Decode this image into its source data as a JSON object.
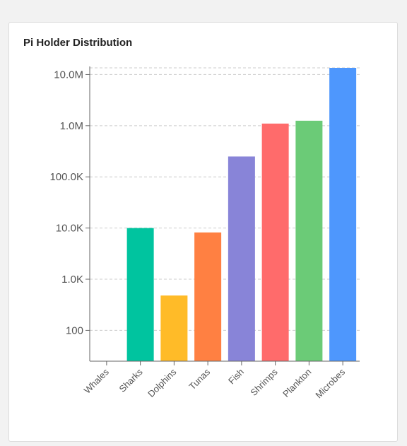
{
  "card": {
    "title": "Pi Holder Distribution"
  },
  "chart_data": {
    "type": "bar",
    "title": "Pi Holder Distribution",
    "xlabel": "",
    "ylabel": "",
    "yscale": "log",
    "ylim": [
      25,
      13500000
    ],
    "grid": true,
    "legend": "none",
    "yticks": [
      {
        "value": 100,
        "label": "100"
      },
      {
        "value": 1000,
        "label": "1.0K"
      },
      {
        "value": 10000,
        "label": "10.0K"
      },
      {
        "value": 100000,
        "label": "100.0K"
      },
      {
        "value": 1000000,
        "label": "1.0M"
      },
      {
        "value": 10000000,
        "label": "10.0M"
      }
    ],
    "categories": [
      "Whales",
      "Sharks",
      "Dolphins",
      "Tunas",
      "Fish",
      "Shrimps",
      "Plankton",
      "Microbes"
    ],
    "values": [
      0,
      10000,
      480,
      8200,
      250000,
      1100000,
      1250000,
      13500000
    ],
    "colors": [
      "#4e97fd",
      "#00c49f",
      "#ffbb28",
      "#ff8042",
      "#8884d8",
      "#ff6b6b",
      "#6bcb77",
      "#4e97fd"
    ]
  }
}
